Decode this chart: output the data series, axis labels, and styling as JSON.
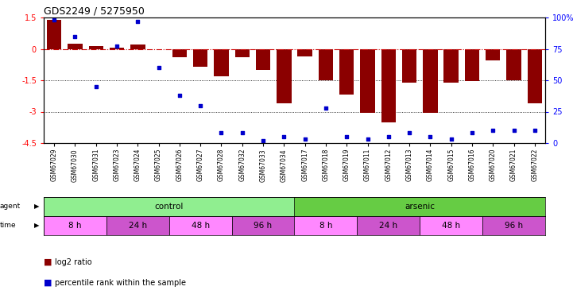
{
  "title": "GDS2249 / 5275950",
  "samples": [
    "GSM67029",
    "GSM67030",
    "GSM67031",
    "GSM67023",
    "GSM67024",
    "GSM67025",
    "GSM67026",
    "GSM67027",
    "GSM67028",
    "GSM67032",
    "GSM67033",
    "GSM67034",
    "GSM67017",
    "GSM67018",
    "GSM67019",
    "GSM67011",
    "GSM67012",
    "GSM67013",
    "GSM67014",
    "GSM67015",
    "GSM67016",
    "GSM67020",
    "GSM67021",
    "GSM67022"
  ],
  "log2_ratio": [
    1.4,
    0.25,
    0.15,
    0.05,
    0.22,
    0.0,
    -0.4,
    -0.85,
    -1.3,
    -0.4,
    -1.0,
    -2.6,
    -0.35,
    -1.5,
    -2.2,
    -3.05,
    -3.5,
    -1.6,
    -3.05,
    -1.6,
    -1.55,
    -0.55,
    -1.5,
    -2.6
  ],
  "percentile": [
    98,
    85,
    45,
    77,
    97,
    60,
    38,
    30,
    8,
    8,
    2,
    5,
    3,
    28,
    5,
    3,
    5,
    8,
    5,
    3,
    8,
    10,
    10,
    10
  ],
  "agent_groups": [
    {
      "label": "control",
      "start": 0,
      "end": 11,
      "color": "#90EE90"
    },
    {
      "label": "arsenic",
      "start": 12,
      "end": 23,
      "color": "#66CC44"
    }
  ],
  "time_groups": [
    {
      "label": "8 h",
      "start": 0,
      "end": 2,
      "color": "#FF88FF"
    },
    {
      "label": "24 h",
      "start": 3,
      "end": 5,
      "color": "#CC55CC"
    },
    {
      "label": "48 h",
      "start": 6,
      "end": 8,
      "color": "#FF88FF"
    },
    {
      "label": "96 h",
      "start": 9,
      "end": 11,
      "color": "#CC55CC"
    },
    {
      "label": "8 h",
      "start": 12,
      "end": 14,
      "color": "#FF88FF"
    },
    {
      "label": "24 h",
      "start": 15,
      "end": 17,
      "color": "#CC55CC"
    },
    {
      "label": "48 h",
      "start": 18,
      "end": 20,
      "color": "#FF88FF"
    },
    {
      "label": "96 h",
      "start": 21,
      "end": 23,
      "color": "#CC55CC"
    }
  ],
  "ylim": [
    -4.5,
    1.5
  ],
  "yticks_left": [
    1.5,
    0,
    -1.5,
    -3,
    -4.5
  ],
  "yticks_right": [
    100,
    75,
    50,
    25,
    0
  ],
  "bar_color": "#8B0000",
  "dot_color": "#0000CC",
  "ref_line_color": "#CC0000",
  "grid_line_color": "#000000",
  "background_color": "#FFFFFF"
}
